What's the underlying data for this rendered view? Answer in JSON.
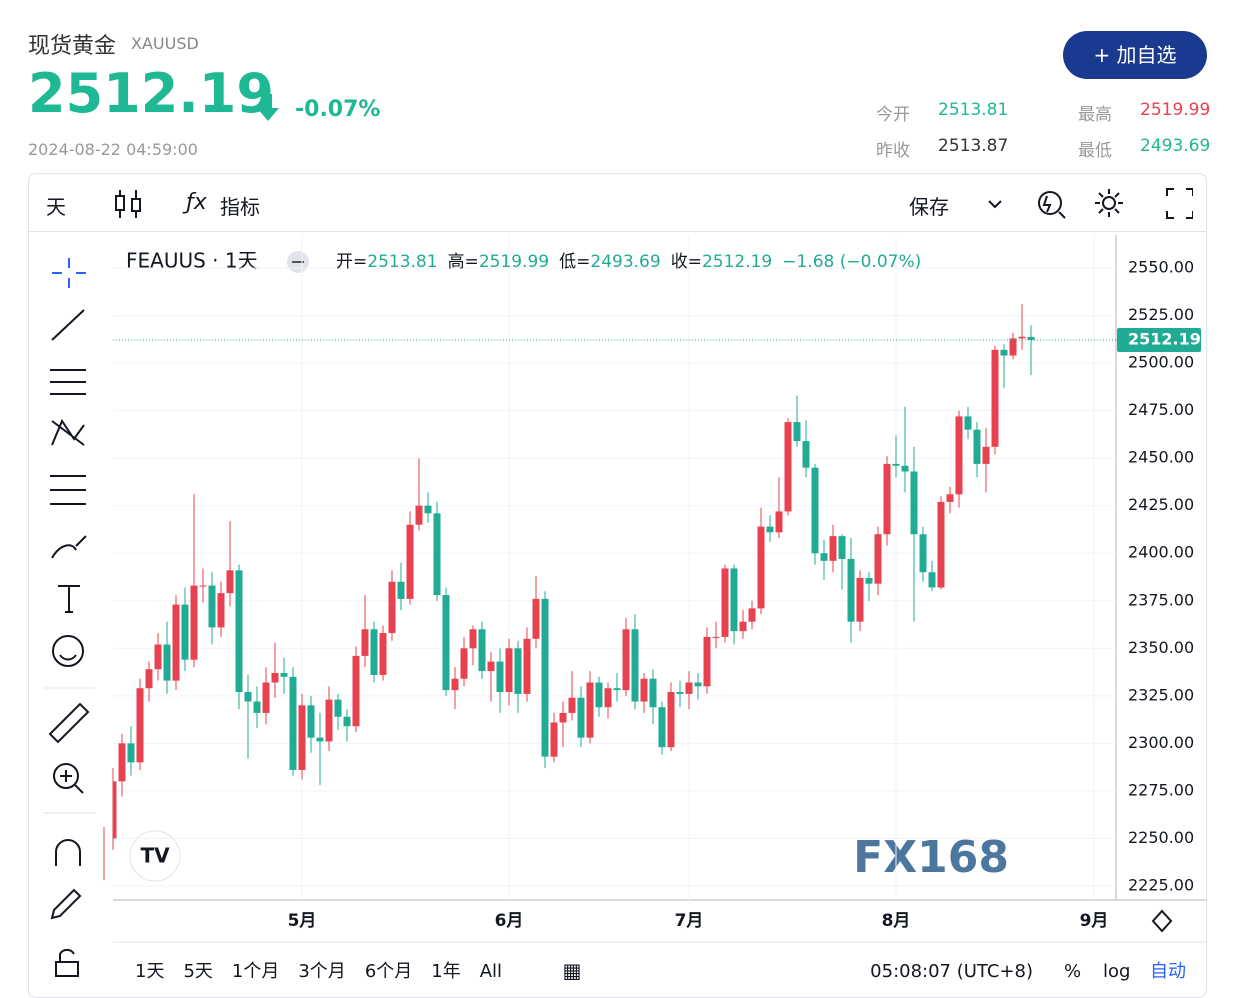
{
  "header": {
    "title": "现货黄金",
    "symbol": "XAUUSD",
    "price": 2512.19,
    "change": "-0.07%",
    "time": "2024-08-22 04:59:00",
    "watch_button": "+ 加自选"
  },
  "stats": [
    {
      "label": "今开",
      "value": 2513.81
    },
    {
      "label": "最高",
      "value": 2519.99
    },
    {
      "label": "昨收",
      "value": 2513.87
    },
    {
      "label": "最低",
      "value": 2493.69
    }
  ],
  "toolbar": {
    "interval": "天",
    "indicators": "指标",
    "save": "保存"
  },
  "chart_data": {
    "type": "candlestick",
    "legend_title": "FEAUUS · 1天",
    "legend_labels": [
      "开=",
      "高=",
      "低=",
      "收="
    ],
    "change_label": "−1.68 (−0.07%)",
    "up_color": "#e8414f",
    "down_color": "#22ab94",
    "open": [
      2233,
      2250,
      2280,
      2300,
      2290,
      2329,
      2339,
      2352,
      2333,
      2373,
      2344,
      2383,
      2383,
      2361,
      2379,
      2391,
      2327,
      2322,
      2316,
      2332,
      2337,
      2335,
      2286,
      2320,
      2303,
      2301,
      2323,
      2314,
      2309,
      2346,
      2360,
      2336,
      2358,
      2385,
      2376,
      2415,
      2425,
      2421,
      2378,
      2328,
      2334,
      2350,
      2360,
      2338,
      2343,
      2327,
      2350,
      2326,
      2355,
      2376,
      2293,
      2311,
      2316,
      2324,
      2303,
      2332,
      2319,
      2329,
      2328,
      2360,
      2322,
      2334,
      2319,
      2298,
      2327,
      2326,
      2332,
      2330,
      2356,
      2356,
      2392,
      2359,
      2364,
      2371,
      2414,
      2411,
      2422,
      2469,
      2459,
      2445,
      2400,
      2396,
      2409,
      2397,
      2364,
      2387,
      2384,
      2410,
      2447,
      2446,
      2443,
      2410,
      2390,
      2382,
      2427,
      2431,
      2472,
      2465,
      2447,
      2456,
      2507,
      2504,
      2513,
      2513.81
    ],
    "high": [
      2256,
      2287,
      2305,
      2309,
      2334,
      2343,
      2358,
      2364,
      2378,
      2382,
      2431,
      2392,
      2390,
      2385,
      2417,
      2394,
      2336,
      2330,
      2340,
      2353,
      2345,
      2340,
      2326,
      2325,
      2316,
      2330,
      2326,
      2318,
      2351,
      2378,
      2364,
      2362,
      2391,
      2395,
      2422,
      2450,
      2432,
      2427,
      2382,
      2340,
      2356,
      2362,
      2364,
      2348,
      2350,
      2355,
      2354,
      2361,
      2388,
      2380,
      2316,
      2322,
      2338,
      2330,
      2338,
      2335,
      2332,
      2337,
      2366,
      2368,
      2337,
      2339,
      2322,
      2332,
      2333,
      2338,
      2337,
      2361,
      2364,
      2394,
      2394,
      2370,
      2375,
      2424,
      2420,
      2440,
      2471,
      2483,
      2470,
      2447,
      2407,
      2415,
      2410,
      2408,
      2391,
      2390,
      2414,
      2451,
      2462,
      2477,
      2456,
      2414,
      2396,
      2430,
      2435,
      2475,
      2477,
      2469,
      2466,
      2509,
      2510,
      2516,
      2531,
      2519.99
    ],
    "low": [
      2228,
      2244,
      2272,
      2283,
      2286,
      2322,
      2333,
      2326,
      2328,
      2338,
      2340,
      2374,
      2352,
      2356,
      2372,
      2318,
      2292,
      2308,
      2310,
      2324,
      2326,
      2283,
      2281,
      2295,
      2278,
      2296,
      2307,
      2301,
      2306,
      2340,
      2332,
      2333,
      2354,
      2370,
      2373,
      2412,
      2416,
      2375,
      2325,
      2318,
      2330,
      2341,
      2334,
      2322,
      2316,
      2320,
      2316,
      2322,
      2350,
      2287,
      2290,
      2298,
      2312,
      2298,
      2300,
      2314,
      2313,
      2322,
      2325,
      2318,
      2316,
      2310,
      2294,
      2296,
      2319,
      2318,
      2323,
      2326,
      2350,
      2353,
      2352,
      2355,
      2360,
      2368,
      2406,
      2408,
      2420,
      2456,
      2440,
      2394,
      2386,
      2390,
      2381,
      2353,
      2359,
      2375,
      2378,
      2404,
      2440,
      2432,
      2364,
      2385,
      2380,
      2381,
      2421,
      2424,
      2460,
      2440,
      2432,
      2452,
      2487,
      2502,
      2507,
      2493.69
    ],
    "close": [
      2250,
      2280,
      2300,
      2290,
      2329,
      2339,
      2352,
      2333,
      2373,
      2344,
      2383,
      2383,
      2361,
      2379,
      2391,
      2327,
      2322,
      2316,
      2332,
      2337,
      2335,
      2286,
      2320,
      2303,
      2301,
      2323,
      2314,
      2309,
      2346,
      2360,
      2336,
      2358,
      2385,
      2376,
      2415,
      2425,
      2421,
      2378,
      2328,
      2334,
      2350,
      2360,
      2338,
      2343,
      2327,
      2350,
      2326,
      2355,
      2376,
      2293,
      2311,
      2316,
      2324,
      2303,
      2332,
      2319,
      2329,
      2328,
      2360,
      2322,
      2334,
      2319,
      2298,
      2327,
      2326,
      2332,
      2330,
      2356,
      2356,
      2392,
      2359,
      2364,
      2371,
      2414,
      2411,
      2422,
      2469,
      2459,
      2445,
      2400,
      2396,
      2409,
      2397,
      2364,
      2387,
      2384,
      2410,
      2447,
      2446,
      2443,
      2410,
      2390,
      2382,
      2427,
      2431,
      2472,
      2465,
      2447,
      2456,
      2507,
      2504,
      2513,
      2513.87,
      2512.19
    ],
    "ylim": [
      2217.6,
      2567.4
    ],
    "yticks": [
      {
        "value": 2225,
        "label": "2225.00"
      },
      {
        "value": 2250,
        "label": "2250.00"
      },
      {
        "value": 2275,
        "label": "2275.00"
      },
      {
        "value": 2300,
        "label": "2300.00"
      },
      {
        "value": 2325,
        "label": "2325.00"
      },
      {
        "value": 2350,
        "label": "2350.00"
      },
      {
        "value": 2375,
        "label": "2375.00"
      },
      {
        "value": 2400,
        "label": "2400.00"
      },
      {
        "value": 2425,
        "label": "2425.00"
      },
      {
        "value": 2450,
        "label": "2450.00"
      },
      {
        "value": 2475,
        "label": "2475.00"
      },
      {
        "value": 2500,
        "label": "2500.00"
      },
      {
        "value": 2525,
        "label": "2525.00"
      },
      {
        "value": 2550,
        "label": "2550.00"
      }
    ],
    "xticks": [
      {
        "value": 22,
        "label": "5月"
      },
      {
        "value": 45,
        "label": "6月"
      },
      {
        "value": 65,
        "label": "7月"
      },
      {
        "value": 88,
        "label": "8月"
      },
      {
        "value": 110,
        "label": "9月"
      }
    ],
    "grid": true
  },
  "watermark": "FX168",
  "footer": {
    "ranges": [
      "1天",
      "5天",
      "1个月",
      "3个月",
      "6个月",
      "1年",
      "All"
    ],
    "clock": "05:08:07 (UTC+8)",
    "percent": "%",
    "log": "log",
    "auto": "自动"
  }
}
